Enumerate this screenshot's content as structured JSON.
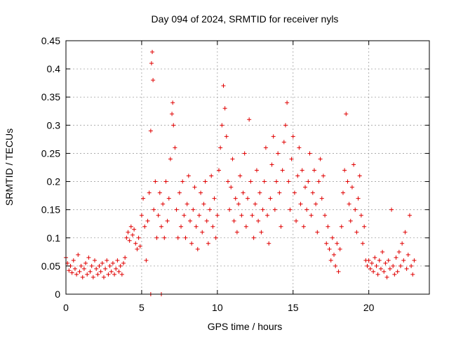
{
  "chart_data": {
    "type": "scatter",
    "title": "Day 094 of 2024, SRMTID for receiver nyls",
    "xlabel": "GPS time / hours",
    "ylabel": "SRMTID / TECUs",
    "xlim": [
      0,
      24
    ],
    "ylim": [
      0,
      0.45
    ],
    "xticks": [
      0,
      5,
      10,
      15,
      20
    ],
    "yticks": [
      0,
      0.05,
      0.1,
      0.15,
      0.2,
      0.25,
      0.3,
      0.35,
      0.4,
      0.45
    ],
    "xtick_labels": [
      "0",
      "5",
      "10",
      "15",
      "20"
    ],
    "ytick_labels": [
      "0",
      "0.05",
      "0.1",
      "0.15",
      "0.2",
      "0.25",
      "0.3",
      "0.35",
      "0.4",
      "0.45"
    ],
    "grid": true,
    "marker": "plus",
    "color": "#e00000",
    "series": [
      {
        "name": "SRMTID",
        "points": [
          [
            0.0,
            0.065
          ],
          [
            0.1,
            0.055
          ],
          [
            0.2,
            0.042
          ],
          [
            0.3,
            0.05
          ],
          [
            0.4,
            0.038
          ],
          [
            0.5,
            0.06
          ],
          [
            0.6,
            0.045
          ],
          [
            0.7,
            0.035
          ],
          [
            0.8,
            0.07
          ],
          [
            0.9,
            0.04
          ],
          [
            1.0,
            0.05
          ],
          [
            1.1,
            0.03
          ],
          [
            1.2,
            0.045
          ],
          [
            1.3,
            0.055
          ],
          [
            1.4,
            0.035
          ],
          [
            1.5,
            0.065
          ],
          [
            1.6,
            0.04
          ],
          [
            1.7,
            0.05
          ],
          [
            1.8,
            0.03
          ],
          [
            1.9,
            0.06
          ],
          [
            2.0,
            0.045
          ],
          [
            2.1,
            0.035
          ],
          [
            2.2,
            0.05
          ],
          [
            2.3,
            0.04
          ],
          [
            2.4,
            0.055
          ],
          [
            2.5,
            0.03
          ],
          [
            2.6,
            0.045
          ],
          [
            2.7,
            0.06
          ],
          [
            2.8,
            0.035
          ],
          [
            2.9,
            0.05
          ],
          [
            3.0,
            0.04
          ],
          [
            3.1,
            0.055
          ],
          [
            3.2,
            0.035
          ],
          [
            3.3,
            0.045
          ],
          [
            3.4,
            0.06
          ],
          [
            3.5,
            0.04
          ],
          [
            3.6,
            0.05
          ],
          [
            3.7,
            0.035
          ],
          [
            3.8,
            0.055
          ],
          [
            3.9,
            0.065
          ],
          [
            4.0,
            0.1
          ],
          [
            4.1,
            0.11
          ],
          [
            4.2,
            0.095
          ],
          [
            4.3,
            0.12
          ],
          [
            4.4,
            0.105
          ],
          [
            4.5,
            0.115
          ],
          [
            4.6,
            0.09
          ],
          [
            4.7,
            0.08
          ],
          [
            4.8,
            0.1
          ],
          [
            4.9,
            0.085
          ],
          [
            5.0,
            0.14
          ],
          [
            5.1,
            0.17
          ],
          [
            5.2,
            0.12
          ],
          [
            5.3,
            0.06
          ],
          [
            5.4,
            0.13
          ],
          [
            5.5,
            0.18
          ],
          [
            5.6,
            0.29
          ],
          [
            5.65,
            0.41
          ],
          [
            5.7,
            0.43
          ],
          [
            5.75,
            0.38
          ],
          [
            5.8,
            0.15
          ],
          [
            5.9,
            0.2
          ],
          [
            6.0,
            0.1
          ],
          [
            6.1,
            0.14
          ],
          [
            6.2,
            0.18
          ],
          [
            6.3,
            0.12
          ],
          [
            6.4,
            0.16
          ],
          [
            6.5,
            0.1
          ],
          [
            6.6,
            0.2
          ],
          [
            6.7,
            0.13
          ],
          [
            6.8,
            0.17
          ],
          [
            6.9,
            0.24
          ],
          [
            7.0,
            0.32
          ],
          [
            7.05,
            0.34
          ],
          [
            7.1,
            0.3
          ],
          [
            7.2,
            0.26
          ],
          [
            7.3,
            0.15
          ],
          [
            7.4,
            0.1
          ],
          [
            7.5,
            0.18
          ],
          [
            7.6,
            0.12
          ],
          [
            7.7,
            0.2
          ],
          [
            7.8,
            0.14
          ],
          [
            7.9,
            0.1
          ],
          [
            8.0,
            0.16
          ],
          [
            8.1,
            0.21
          ],
          [
            8.2,
            0.13
          ],
          [
            8.3,
            0.09
          ],
          [
            8.4,
            0.15
          ],
          [
            8.5,
            0.19
          ],
          [
            8.6,
            0.12
          ],
          [
            8.7,
            0.08
          ],
          [
            8.8,
            0.14
          ],
          [
            8.9,
            0.18
          ],
          [
            9.0,
            0.11
          ],
          [
            9.1,
            0.16
          ],
          [
            9.2,
            0.2
          ],
          [
            9.3,
            0.13
          ],
          [
            9.4,
            0.09
          ],
          [
            9.5,
            0.15
          ],
          [
            9.6,
            0.21
          ],
          [
            9.7,
            0.12
          ],
          [
            9.8,
            0.17
          ],
          [
            9.9,
            0.1
          ],
          [
            10.0,
            0.14
          ],
          [
            10.1,
            0.22
          ],
          [
            10.2,
            0.26
          ],
          [
            10.3,
            0.3
          ],
          [
            10.4,
            0.37
          ],
          [
            10.5,
            0.33
          ],
          [
            10.6,
            0.28
          ],
          [
            10.7,
            0.2
          ],
          [
            10.8,
            0.15
          ],
          [
            10.9,
            0.19
          ],
          [
            11.0,
            0.24
          ],
          [
            11.1,
            0.13
          ],
          [
            11.2,
            0.17
          ],
          [
            11.3,
            0.11
          ],
          [
            11.4,
            0.16
          ],
          [
            11.5,
            0.21
          ],
          [
            11.6,
            0.14
          ],
          [
            11.7,
            0.18
          ],
          [
            11.8,
            0.25
          ],
          [
            11.9,
            0.12
          ],
          [
            12.0,
            0.17
          ],
          [
            12.1,
            0.31
          ],
          [
            12.2,
            0.2
          ],
          [
            12.3,
            0.14
          ],
          [
            12.4,
            0.1
          ],
          [
            12.5,
            0.16
          ],
          [
            12.6,
            0.22
          ],
          [
            12.7,
            0.13
          ],
          [
            12.8,
            0.18
          ],
          [
            12.9,
            0.11
          ],
          [
            13.0,
            0.15
          ],
          [
            13.1,
            0.2
          ],
          [
            13.2,
            0.26
          ],
          [
            13.3,
            0.14
          ],
          [
            13.4,
            0.09
          ],
          [
            13.5,
            0.17
          ],
          [
            13.6,
            0.23
          ],
          [
            13.7,
            0.28
          ],
          [
            13.8,
            0.15
          ],
          [
            13.9,
            0.2
          ],
          [
            14.0,
            0.25
          ],
          [
            14.1,
            0.18
          ],
          [
            14.2,
            0.12
          ],
          [
            14.3,
            0.22
          ],
          [
            14.4,
            0.27
          ],
          [
            14.5,
            0.3
          ],
          [
            14.6,
            0.34
          ],
          [
            14.7,
            0.2
          ],
          [
            14.8,
            0.15
          ],
          [
            14.9,
            0.24
          ],
          [
            15.0,
            0.28
          ],
          [
            15.1,
            0.18
          ],
          [
            15.2,
            0.13
          ],
          [
            15.3,
            0.21
          ],
          [
            15.4,
            0.26
          ],
          [
            15.5,
            0.16
          ],
          [
            15.6,
            0.22
          ],
          [
            15.7,
            0.12
          ],
          [
            15.8,
            0.19
          ],
          [
            15.9,
            0.15
          ],
          [
            16.0,
            0.2
          ],
          [
            16.1,
            0.25
          ],
          [
            16.2,
            0.14
          ],
          [
            16.3,
            0.18
          ],
          [
            16.4,
            0.22
          ],
          [
            16.5,
            0.16
          ],
          [
            16.6,
            0.11
          ],
          [
            16.7,
            0.2
          ],
          [
            16.8,
            0.24
          ],
          [
            16.9,
            0.17
          ],
          [
            17.0,
            0.21
          ],
          [
            17.1,
            0.14
          ],
          [
            17.2,
            0.09
          ],
          [
            17.3,
            0.12
          ],
          [
            17.4,
            0.08
          ],
          [
            17.5,
            0.06
          ],
          [
            17.6,
            0.1
          ],
          [
            17.7,
            0.07
          ],
          [
            17.8,
            0.05
          ],
          [
            17.9,
            0.09
          ],
          [
            18.0,
            0.04
          ],
          [
            18.1,
            0.08
          ],
          [
            18.2,
            0.12
          ],
          [
            18.3,
            0.18
          ],
          [
            18.4,
            0.22
          ],
          [
            18.5,
            0.32
          ],
          [
            18.6,
            0.2
          ],
          [
            18.7,
            0.16
          ],
          [
            18.8,
            0.13
          ],
          [
            18.9,
            0.19
          ],
          [
            19.0,
            0.23
          ],
          [
            19.1,
            0.15
          ],
          [
            19.2,
            0.11
          ],
          [
            19.3,
            0.17
          ],
          [
            19.4,
            0.21
          ],
          [
            19.5,
            0.14
          ],
          [
            19.6,
            0.09
          ],
          [
            19.7,
            0.12
          ],
          [
            19.8,
            0.06
          ],
          [
            19.9,
            0.05
          ],
          [
            20.0,
            0.06
          ],
          [
            20.1,
            0.045
          ],
          [
            20.2,
            0.055
          ],
          [
            20.3,
            0.04
          ],
          [
            20.4,
            0.065
          ],
          [
            20.5,
            0.05
          ],
          [
            20.6,
            0.035
          ],
          [
            20.7,
            0.06
          ],
          [
            20.8,
            0.045
          ],
          [
            20.9,
            0.075
          ],
          [
            21.0,
            0.04
          ],
          [
            21.1,
            0.055
          ],
          [
            21.2,
            0.03
          ],
          [
            21.3,
            0.06
          ],
          [
            21.4,
            0.045
          ],
          [
            21.5,
            0.15
          ],
          [
            21.6,
            0.05
          ],
          [
            21.7,
            0.035
          ],
          [
            21.8,
            0.065
          ],
          [
            21.9,
            0.04
          ],
          [
            22.0,
            0.075
          ],
          [
            22.1,
            0.05
          ],
          [
            22.2,
            0.09
          ],
          [
            22.3,
            0.06
          ],
          [
            22.4,
            0.11
          ],
          [
            22.5,
            0.045
          ],
          [
            22.6,
            0.07
          ],
          [
            22.7,
            0.14
          ],
          [
            22.8,
            0.05
          ],
          [
            22.9,
            0.035
          ],
          [
            23.0,
            0.06
          ],
          [
            5.6,
            0.0
          ],
          [
            6.3,
            0.0
          ]
        ]
      }
    ]
  }
}
